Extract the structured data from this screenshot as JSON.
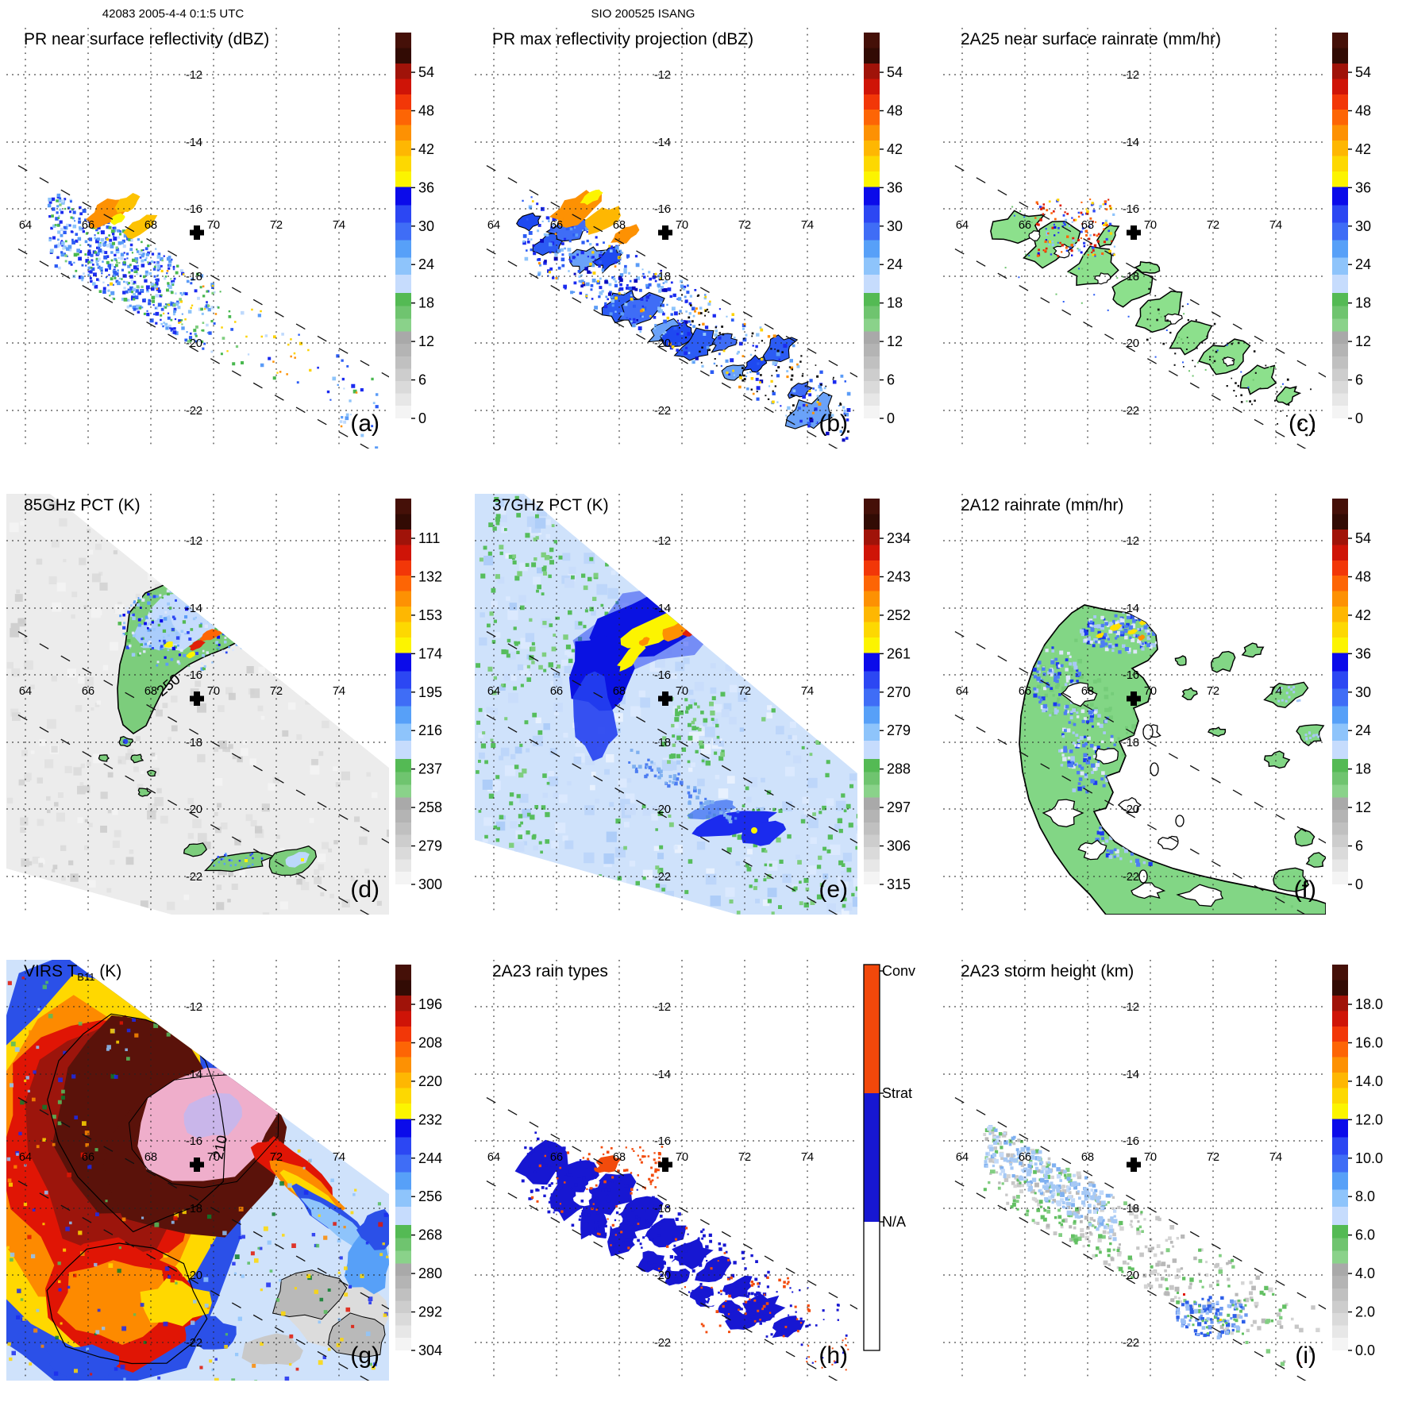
{
  "meta": {
    "left_header": "42083 2005-4-4 0:1:5 UTC",
    "center_header": "SIO 200525 ISANG"
  },
  "chart_data": {
    "type": "heatmap",
    "layout": "3x3 satellite map panels with vertical colorbars",
    "axes": {
      "lon_labels": [
        "64",
        "66",
        "68",
        "70",
        "72",
        "74"
      ],
      "lat_labels": [
        "-12",
        "-14",
        "-16",
        "-18",
        "-20",
        "-22"
      ],
      "lon_range": [
        63.4,
        75.6
      ],
      "lat_range": [
        -23.1,
        -10.6
      ],
      "grid": "dotted",
      "center_marker": "+",
      "center_marker_lon": 69.7,
      "center_marker_lat": -16.7,
      "swath_edges": "two parallel dashed lines sloping down to the right"
    },
    "colormap_segments": [
      {
        "c": "#451008",
        "f": 0.04
      },
      {
        "c": "#320b04",
        "f": 0.04
      },
      {
        "c": "#a01309",
        "f": 0.04
      },
      {
        "c": "#cf1407",
        "f": 0.04
      },
      {
        "c": "#f23708",
        "f": 0.04
      },
      {
        "c": "#fd6505",
        "f": 0.04
      },
      {
        "c": "#fd9103",
        "f": 0.04
      },
      {
        "c": "#feb702",
        "f": 0.04
      },
      {
        "c": "#fdd801",
        "f": 0.04
      },
      {
        "c": "#fcf400",
        "f": 0.04
      },
      {
        "c": "#0b0bea",
        "f": 0.048
      },
      {
        "c": "#2c47f3",
        "f": 0.045
      },
      {
        "c": "#3f6df6",
        "f": 0.045
      },
      {
        "c": "#57a0f8",
        "f": 0.045
      },
      {
        "c": "#8ec4fb",
        "f": 0.045
      },
      {
        "c": "#c6dcfd",
        "f": 0.047
      },
      {
        "c": "#54ba54",
        "f": 0.034
      },
      {
        "c": "#6fc46f",
        "f": 0.033
      },
      {
        "c": "#8ad28a",
        "f": 0.033
      },
      {
        "c": "#a9a9a9",
        "f": 0.032
      },
      {
        "c": "#b4b4b4",
        "f": 0.032
      },
      {
        "c": "#c0c0c0",
        "f": 0.032
      },
      {
        "c": "#cdcdcd",
        "f": 0.032
      },
      {
        "c": "#dadada",
        "f": 0.032
      },
      {
        "c": "#e7e7e7",
        "f": 0.032
      },
      {
        "c": "#f4f4f4",
        "f": 0.033
      }
    ],
    "panels": [
      {
        "id": "a",
        "letter": "(a)",
        "title_runs": [
          {
            "t": "PR near surface reflectivity (dBZ)"
          }
        ],
        "colorbar": {
          "kind": "gradient",
          "ticks": [
            "54",
            "48",
            "42",
            "36",
            "30",
            "24",
            "18",
            "12",
            "6",
            "0"
          ]
        },
        "swath": "narrow PR swath",
        "features": "speckled blue echoes along swath, orange-yellow core near 66E 16.5S"
      },
      {
        "id": "b",
        "letter": "(b)",
        "title_runs": [
          {
            "t": "PR max reflectivity projection (dBZ)"
          }
        ],
        "colorbar": {
          "kind": "gradient",
          "ticks": [
            "54",
            "48",
            "42",
            "36",
            "30",
            "24",
            "18",
            "12",
            "6",
            "0"
          ]
        },
        "swath": "narrow PR swath",
        "features": "dense blue blobs with black contours, large orange patch upper-left, orange spots lower band"
      },
      {
        "id": "c",
        "letter": "(c)",
        "title_runs": [
          {
            "t": "2A25 near surface rainrate (mm/hr)"
          }
        ],
        "colorbar": {
          "kind": "gradient",
          "ticks": [
            "54",
            "48",
            "42",
            "36",
            "30",
            "24",
            "18",
            "12",
            "6",
            "0"
          ]
        },
        "swath": "narrow PR swath",
        "features": "green rain areas outlined in black, red/blue speckle cluster upper-left"
      },
      {
        "id": "d",
        "letter": "(d)",
        "title_runs": [
          {
            "t": "85GHz PCT (K)"
          }
        ],
        "colorbar": {
          "kind": "gradient",
          "ticks": [
            "111",
            "132",
            "153",
            "174",
            "195",
            "216",
            "237",
            "258",
            "279",
            "300"
          ]
        },
        "swath": "wide TMI swath (gray)",
        "contour_label": "250",
        "features": "comma-shaped storm: green outline, blue interior, orange/red cells; small blobs to the south"
      },
      {
        "id": "e",
        "letter": "(e)",
        "title_runs": [
          {
            "t": "37GHz PCT (K)"
          }
        ],
        "colorbar": {
          "kind": "gradient",
          "ticks": [
            "234",
            "243",
            "252",
            "261",
            "270",
            "279",
            "288",
            "297",
            "306",
            "315"
          ]
        },
        "swath": "wide TMI swath (light blue)",
        "features": "dark-blue hook with yellow/orange core, green speckles over background, blue tail at 20.5S"
      },
      {
        "id": "f",
        "letter": "(f)",
        "title_runs": [
          {
            "t": "2A12 rainrate (mm/hr)"
          }
        ],
        "colorbar": {
          "kind": "gradient",
          "ticks": [
            "54",
            "48",
            "42",
            "36",
            "30",
            "24",
            "18",
            "12",
            "6",
            "0"
          ]
        },
        "swath": "wide TMI swath",
        "features": "large green comma-shaped rain field with blue streaks and few yellow cells"
      },
      {
        "id": "g",
        "letter": "(g)",
        "title_runs": [
          {
            "t": "VIRS T"
          },
          {
            "t": "B11",
            "sub": true
          },
          {
            "t": " (K)"
          }
        ],
        "colorbar": {
          "kind": "gradient",
          "ticks": [
            "196",
            "208",
            "220",
            "232",
            "244",
            "256",
            "268",
            "280",
            "292",
            "304"
          ]
        },
        "swath": "VIRS full scene",
        "contour_label": "210",
        "features": "cold cloud shield: maroon mass with pink/lavender core, ringed by red-orange-yellow-blue; warm gray/blue field lower right"
      },
      {
        "id": "h",
        "letter": "(h)",
        "title_runs": [
          {
            "t": "2A23 rain types"
          }
        ],
        "colorbar": {
          "kind": "raintype",
          "labels": [
            "Conv",
            "Strat",
            "N/A"
          ],
          "colors": [
            "#f2480b",
            "#1717d2",
            "#ffffff"
          ]
        },
        "swath": "narrow PR swath",
        "features": "stratiform blue regions with convective orange speckles"
      },
      {
        "id": "i",
        "letter": "(i)",
        "title_runs": [
          {
            "t": "2A23 storm height (km)"
          }
        ],
        "colorbar": {
          "kind": "gradient",
          "ticks": [
            "18.0",
            "16.0",
            "14.0",
            "12.0",
            "10.0",
            "8.0",
            "6.0",
            "4.0",
            "2.0",
            "0.0"
          ]
        },
        "swath": "narrow PR swath",
        "features": "gray/green/light-blue speckled heights, deeper blue cluster near 70.5E 20.8S"
      }
    ]
  }
}
